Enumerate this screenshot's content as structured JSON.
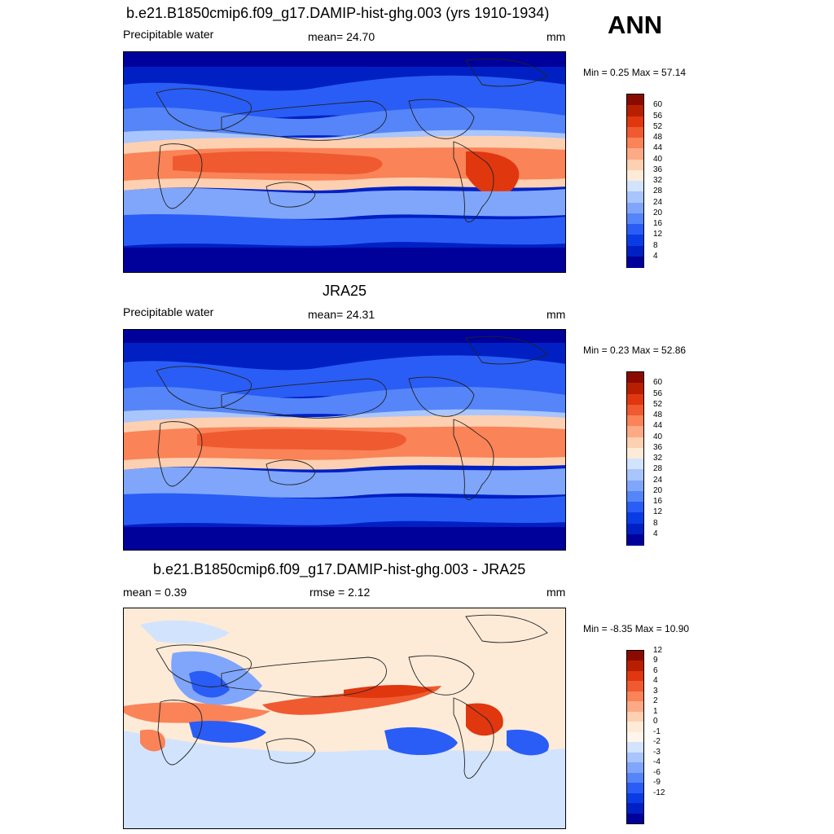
{
  "season": "ANN",
  "colors": {
    "abs_scale": [
      "#00009b",
      "#0020c4",
      "#0a3ce6",
      "#2a5df5",
      "#5585f8",
      "#80a6fb",
      "#a8c5fd",
      "#d2e3fe",
      "#fdebd8",
      "#fdd0b1",
      "#fcaa85",
      "#fa8358",
      "#f05a30",
      "#e0370f",
      "#b81f00",
      "#8b0a00"
    ],
    "diff_scale": [
      "#00009b",
      "#0020c4",
      "#0a3ce6",
      "#2a5df5",
      "#5585f8",
      "#80a6fb",
      "#a8c5fd",
      "#d2e3fe",
      "#fff5ec",
      "#fdebd8",
      "#fdd0b1",
      "#fcaa85",
      "#fa8358",
      "#f05a30",
      "#e0370f",
      "#b81f00",
      "#8b0a00"
    ]
  },
  "panels": [
    {
      "title": "b.e21.B1850cmip6.f09_g17.DAMIP-hist-ghg.003 (yrs 1910-1934)",
      "left_label": "Precipitable water",
      "center_label": "mean=  24.70",
      "units": "mm",
      "minmax": "Min =   0.25 Max =  57.14",
      "levels": [
        "60",
        "56",
        "52",
        "48",
        "44",
        "40",
        "36",
        "32",
        "28",
        "24",
        "20",
        "16",
        "12",
        "8",
        "4"
      ]
    },
    {
      "title": "JRA25",
      "left_label": "Precipitable water",
      "center_label": "mean=  24.31",
      "units": "mm",
      "minmax": "Min =   0.23 Max =  52.86",
      "levels": [
        "60",
        "56",
        "52",
        "48",
        "44",
        "40",
        "36",
        "32",
        "28",
        "24",
        "20",
        "16",
        "12",
        "8",
        "4"
      ]
    },
    {
      "title": "b.e21.B1850cmip6.f09_g17.DAMIP-hist-ghg.003 - JRA25",
      "left_label": "mean =   0.39",
      "center_label": "rmse =   2.12",
      "units": "mm",
      "minmax": "Min =  -8.35 Max =  10.90",
      "levels": [
        "12",
        "9",
        "6",
        "4",
        "3",
        "2",
        "1",
        "0",
        "-1",
        "-2",
        "-3",
        "-4",
        "-6",
        "-9",
        "-12"
      ]
    }
  ]
}
